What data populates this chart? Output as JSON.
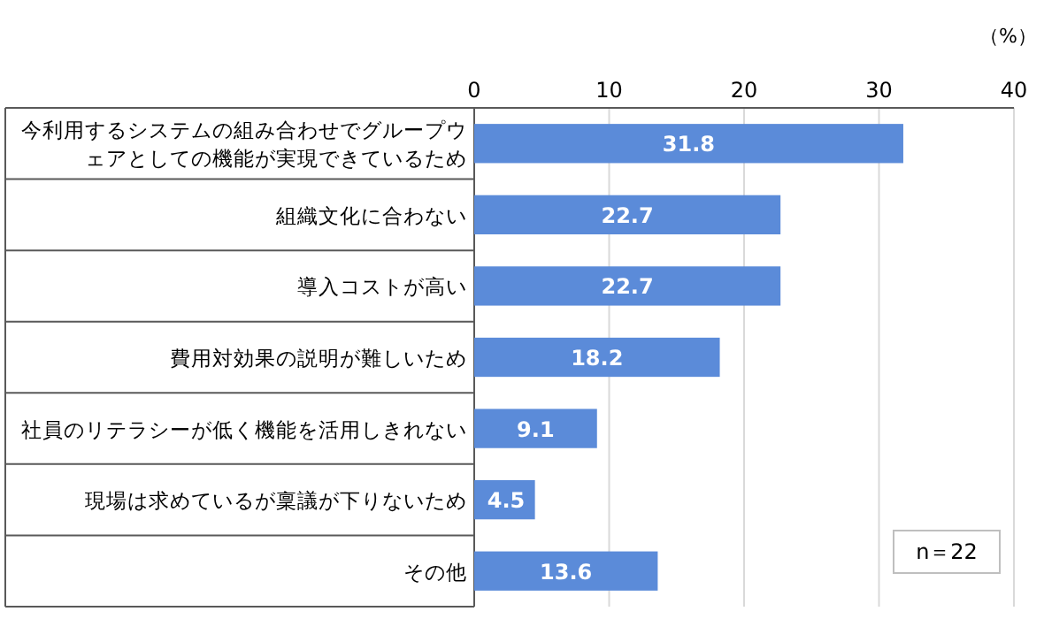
{
  "chart_data": {
    "type": "bar",
    "orientation": "horizontal",
    "xlabel": "（%）",
    "categories": [
      "今利用するシステムの組み合わせでグループウェアとしての機能が実現できているため",
      "組織文化に合わない",
      "導入コストが高い",
      "費用対効果の説明が難しいため",
      "社員のリテラシーが低く機能を活用しきれない",
      "現場は求めているが稟議が下りないため",
      "その他"
    ],
    "values": [
      31.8,
      22.7,
      22.7,
      18.2,
      9.1,
      4.5,
      13.6
    ],
    "color": "#5b8bd9",
    "xlim": [
      0,
      40
    ],
    "xticks": [
      0,
      10,
      20,
      30,
      40
    ],
    "grid": "x",
    "data_labels": true,
    "annotations": [
      "n＝22"
    ]
  }
}
